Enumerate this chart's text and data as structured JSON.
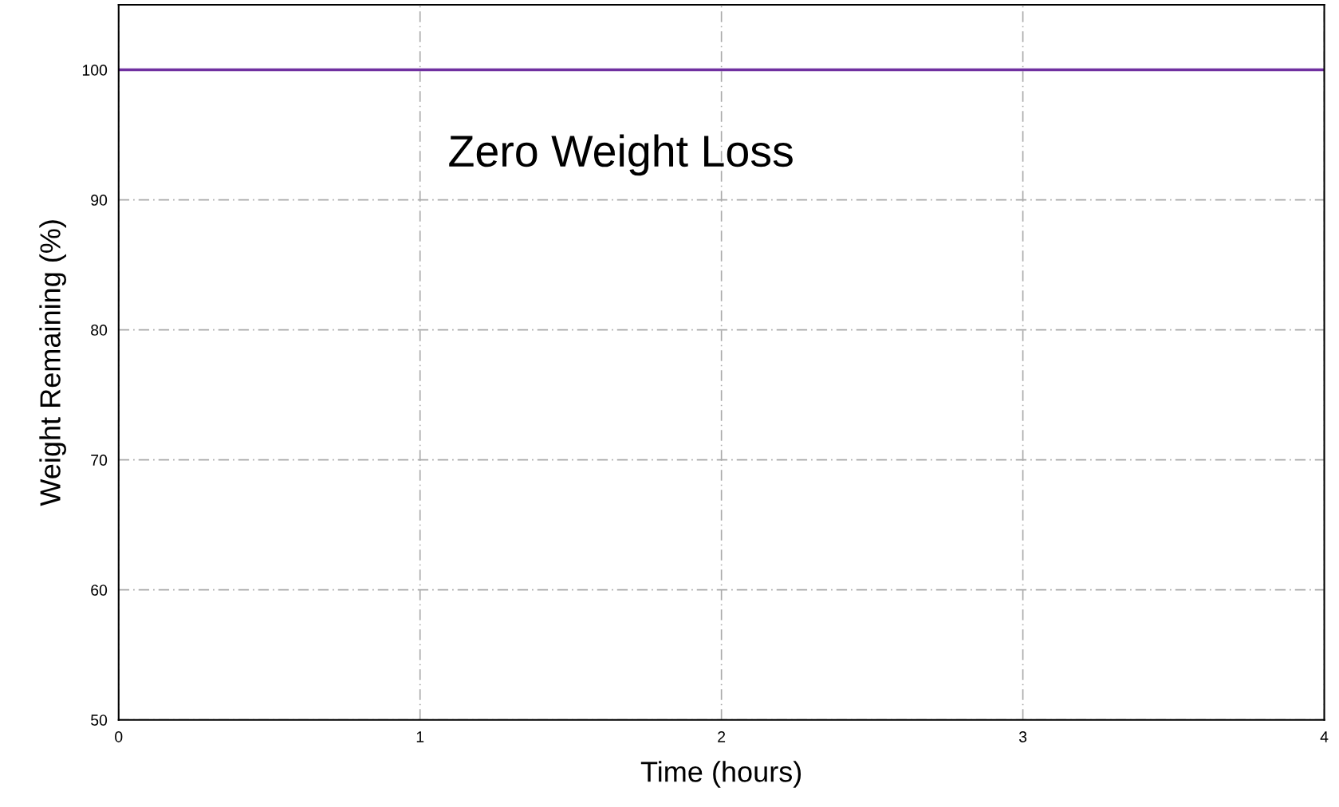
{
  "chart_data": {
    "type": "line",
    "xlabel": "Time (hours)",
    "ylabel": "Weight Remaining (%)",
    "annotations": [
      "Zero Weight Loss"
    ],
    "x": [
      0,
      4
    ],
    "series": [
      {
        "color": "#7030a0",
        "values": [
          100,
          100
        ]
      }
    ],
    "xlim": [
      0,
      4
    ],
    "xticks": [
      0,
      1,
      2,
      3,
      4
    ],
    "ylim": [
      50,
      105
    ],
    "yticks": [
      50,
      60,
      70,
      80,
      90,
      100
    ],
    "grid": true,
    "legend": false,
    "marker": "none",
    "line_style": "solid"
  }
}
